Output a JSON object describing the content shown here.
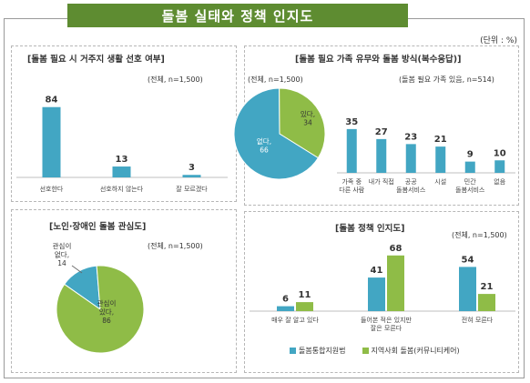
{
  "header": {
    "title": "돌봄 실태와 정책 인지도",
    "unit": "(단위 : %)"
  },
  "colors": {
    "blue": "#42a6c3",
    "green": "#8fbc47",
    "header": "#5e8c31"
  },
  "chart_data": [
    {
      "id": "residence",
      "type": "bar",
      "title": "[돌봄 필요 시 거주지 생활 선호 여부]",
      "note": "(전체, n=1,500)",
      "categories": [
        "선호한다",
        "선호하지 않는다",
        "잘 모르겠다"
      ],
      "values": [
        84,
        13,
        3
      ],
      "ylim": [
        0,
        100
      ]
    },
    {
      "id": "care_family",
      "type": "pie",
      "title": "[돌봄 필요 가족 유무와 돌봄 방식(복수응답)]",
      "note": "(전체, n=1,500)",
      "slices": [
        {
          "label": "없다,",
          "value": 66
        },
        {
          "label": "있다,",
          "value": 34
        }
      ]
    },
    {
      "id": "care_method",
      "type": "bar",
      "note": "(돌봄 필요 가족 있음, n=514)",
      "categories": [
        [
          "가족 중",
          "다른 사람"
        ],
        [
          "내가 직접"
        ],
        [
          "공공",
          "돌봄서비스"
        ],
        [
          "시설"
        ],
        [
          "민간",
          "돌봄서비스"
        ],
        [
          "없음"
        ]
      ],
      "values": [
        35,
        27,
        23,
        21,
        9,
        10
      ],
      "ylim": [
        0,
        40
      ]
    },
    {
      "id": "interest",
      "type": "pie",
      "title": "[노인·장애인 돌봄 관심도]",
      "note": "(전체, n=1,500)",
      "slices": [
        {
          "label": [
            "관심이",
            "없다,"
          ],
          "value": 14
        },
        {
          "label": [
            "관심이",
            "있다,"
          ],
          "value": 86
        }
      ]
    },
    {
      "id": "policy",
      "type": "bar",
      "title": "[돌봄 정책 인지도]",
      "note": "(전체, n=1,500)",
      "categories": [
        [
          "매우 잘 알고 있다"
        ],
        [
          "들어본 적은 있지만",
          "잘은 모른다"
        ],
        [
          "전혀 모른다"
        ]
      ],
      "series": [
        {
          "name": "돌봄통합지원법",
          "values": [
            6,
            41,
            54
          ]
        },
        {
          "name": "지역사회 돌봄(커뮤니티케어)",
          "values": [
            11,
            68,
            21
          ]
        }
      ],
      "ylim": [
        0,
        80
      ]
    }
  ]
}
